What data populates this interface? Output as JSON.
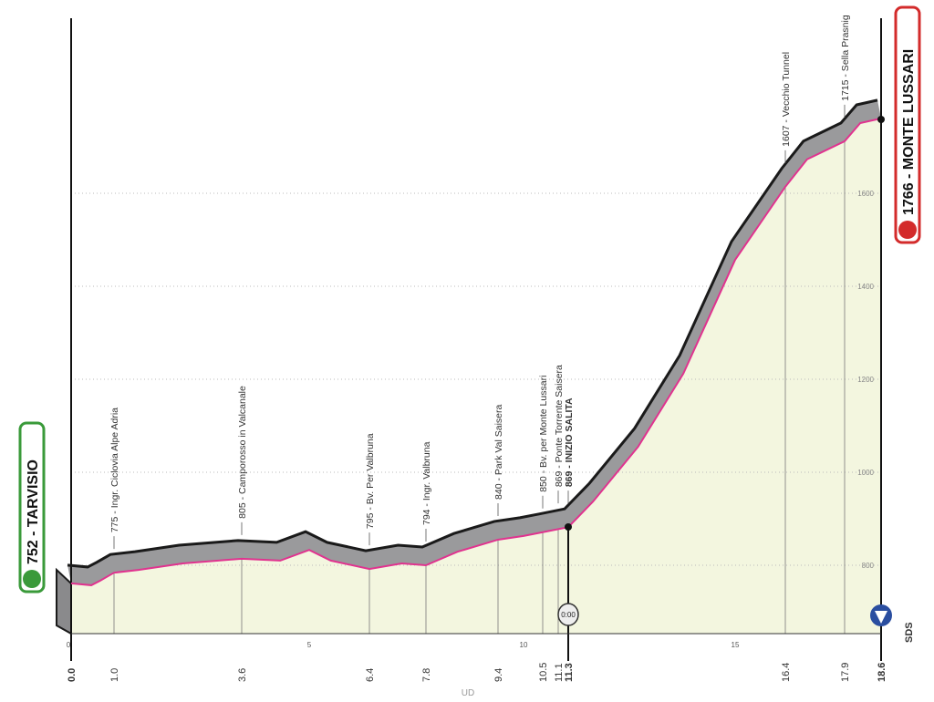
{
  "chart_data": {
    "type": "area",
    "start": {
      "altitude": "752",
      "name": "TARVISIO",
      "label": "752 - TARVISIO",
      "color": "#3a9a3a"
    },
    "finish": {
      "altitude": "1766",
      "name": "MONTE LUSSARI",
      "label": "1766 - MONTE LUSSARI",
      "color": "#d32b2b"
    },
    "profile": [
      [
        0,
        761
      ],
      [
        0.47,
        757
      ],
      [
        0.68,
        767
      ],
      [
        1.0,
        784
      ],
      [
        1.5,
        790
      ],
      [
        2.4,
        804
      ],
      [
        3.6,
        814
      ],
      [
        4.4,
        810
      ],
      [
        5.0,
        833
      ],
      [
        5.5,
        810
      ],
      [
        6.4,
        792
      ],
      [
        7.2,
        804
      ],
      [
        7.8,
        800
      ],
      [
        8.5,
        829
      ],
      [
        9.4,
        855
      ],
      [
        10.0,
        863
      ],
      [
        10.5,
        871
      ],
      [
        11.3,
        882
      ],
      [
        11.85,
        937
      ],
      [
        12.85,
        1055
      ],
      [
        13.85,
        1212
      ],
      [
        15.0,
        1457
      ],
      [
        16.4,
        1614
      ],
      [
        16.95,
        1673
      ],
      [
        17.9,
        1712
      ],
      [
        18.2,
        1751
      ],
      [
        18.6,
        1761
      ]
    ],
    "y_ticks": [
      "800",
      "1000",
      "1200",
      "1400",
      "1600"
    ],
    "x_ticks": [
      "0",
      "5",
      "10",
      "15"
    ],
    "km_markers": [
      {
        "km": "0.0",
        "bold": true
      },
      {
        "km": "1.0"
      },
      {
        "km": "3.6"
      },
      {
        "km": "6.4"
      },
      {
        "km": "7.8"
      },
      {
        "km": "9.4"
      },
      {
        "km": "10.5"
      },
      {
        "km": "11.1"
      },
      {
        "km": "11.3",
        "bold": true
      },
      {
        "km": "16.4"
      },
      {
        "km": "17.9"
      },
      {
        "km": "18.6",
        "bold": true
      }
    ],
    "annotations": [
      {
        "km": 1.0,
        "text": "775 - Ingr. Ciclovia Alpe Adria"
      },
      {
        "km": 3.6,
        "text": "805 - Camporosso in Valcanale"
      },
      {
        "km": 6.4,
        "text": "795 - Bv. Per Valbruna"
      },
      {
        "km": 7.8,
        "text": "794 - Ingr. Valbruna"
      },
      {
        "km": 9.4,
        "text": "840 - Park Val Saisera"
      },
      {
        "km": 10.5,
        "text": "850 - Bv. per Monte Lussari"
      },
      {
        "km": 11.1,
        "text": "869 - Ponte Torrente Saisera"
      },
      {
        "km": 11.3,
        "text": "869 - INIZIO SALITA",
        "bold": true
      },
      {
        "km": 16.4,
        "text": "1607 - Vecchio Tunnel"
      },
      {
        "km": 17.9,
        "text": "1715 - Sella Prasnig"
      }
    ],
    "timecheck": "0:00",
    "province": "UD",
    "logo": "SDS",
    "colors": {
      "fill": "#f3f6df",
      "band": "#9a9a9c",
      "line": "#1a1a1a",
      "road": "#e0338f"
    }
  }
}
